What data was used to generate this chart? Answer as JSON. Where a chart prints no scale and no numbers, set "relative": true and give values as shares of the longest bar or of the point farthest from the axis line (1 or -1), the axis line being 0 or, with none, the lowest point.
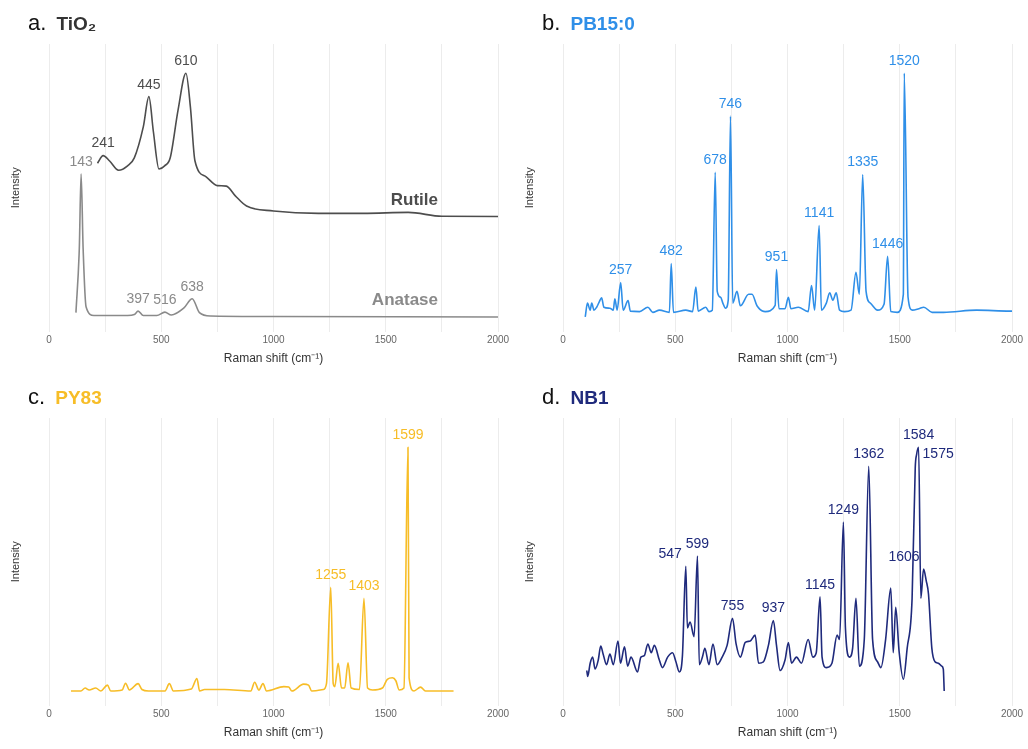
{
  "chart_data": [
    {
      "type": "line",
      "title": "a. TiO₂",
      "xlabel": "Raman shift (cm⁻¹)",
      "ylabel": "Intensity",
      "relative": true,
      "xlim": [
        0,
        2000
      ],
      "xticks": [
        0,
        {
          "value": 250,
          "label": null
        },
        500,
        {
          "value": 750,
          "label": null
        },
        1000,
        {
          "value": 1250,
          "label": null
        },
        1500,
        {
          "value": 1750,
          "label": null
        },
        2000
      ],
      "grid": "x",
      "series": [
        {
          "name": "Rutile",
          "color": "#4d4d4d",
          "x": [
            216,
            241,
            270,
            310,
            350,
            380,
            420,
            445,
            465,
            490,
            515,
            540,
            575,
            610,
            630,
            650,
            700,
            750,
            790,
            830,
            880,
            1000,
            1200,
            1400,
            1600,
            1750,
            2000
          ],
          "values": [
            0.631,
            0.662,
            0.64,
            0.602,
            0.62,
            0.653,
            0.78,
            0.904,
            0.76,
            0.607,
            0.62,
            0.653,
            0.85,
            1,
            0.86,
            0.641,
            0.575,
            0.539,
            0.537,
            0.497,
            0.455,
            0.435,
            0.425,
            0.425,
            0.429,
            0.413,
            0.412
          ]
        },
        {
          "name": "Anatase",
          "color": "#8a8a8a",
          "x": [
            120,
            135,
            143,
            152,
            165,
            200,
            350,
            380,
            397,
            420,
            480,
            516,
            545,
            600,
            638,
            670,
            720,
            1000,
            2000
          ],
          "values": [
            0.018,
            0.281,
            0.587,
            0.281,
            0.042,
            0.006,
            0.006,
            0.01,
            0.024,
            0.006,
            0.006,
            0.02,
            0.008,
            0.036,
            0.075,
            0.018,
            0.004,
            0.002,
            0
          ]
        }
      ],
      "annotations": [
        {
          "text": "610",
          "x": 610,
          "y": 1
        },
        {
          "text": "445",
          "x": 445,
          "y": 0.904
        },
        {
          "text": "241",
          "x": 241,
          "y": 0.662
        },
        {
          "text": "143",
          "x": 143,
          "y": 0.587
        },
        {
          "text": "638",
          "x": 638,
          "y": 0.075
        },
        {
          "text": "397",
          "x": 397,
          "y": 0.024
        },
        {
          "text": "516",
          "x": 516,
          "y": 0.02
        }
      ]
    },
    {
      "type": "line",
      "title": "b. PB15:0",
      "xlabel": "Raman shift (cm⁻¹)",
      "ylabel": "Intensity",
      "relative": true,
      "xlim": [
        0,
        2000
      ],
      "xticks": [
        0,
        {
          "value": 250,
          "label": null
        },
        500,
        {
          "value": 750,
          "label": null
        },
        1000,
        {
          "value": 1250,
          "label": null
        },
        1500,
        {
          "value": 1750,
          "label": null
        },
        2000
      ],
      "grid": "x",
      "series": [
        {
          "color": "#2f8fe8",
          "x": [
            99,
            109,
            121,
            128,
            138,
            150,
            162,
            172,
            182,
            209,
            224,
            231,
            241,
            257,
            268,
            290,
            300,
            341,
            378,
            400,
            430,
            474,
            482,
            492,
            547,
            577,
            592,
            602,
            636,
            650,
            665,
            678,
            687,
            702,
            712,
            724,
            736,
            746,
            756,
            775,
            790,
            827,
            842,
            864,
            901,
            945,
            951,
            962,
            989,
            1004,
            1015,
            1048,
            1092,
            1107,
            1121,
            1141,
            1151,
            1173,
            1188,
            1202,
            1217,
            1232,
            1254,
            1283,
            1305,
            1320,
            1335,
            1350,
            1369,
            1401,
            1430,
            1446,
            1460,
            1489,
            1516,
            1520,
            1537,
            1556,
            1585,
            1607,
            1644,
            1695,
            1842,
            1990,
            2000
          ],
          "values": [
            0,
            0.057,
            0.028,
            0.057,
            0.028,
            0.04,
            0.063,
            0.079,
            0.04,
            0.036,
            0.028,
            0.075,
            0.028,
            0.141,
            0.028,
            0.067,
            0.024,
            0.022,
            0.04,
            0.019,
            0.028,
            0.019,
            0.219,
            0.019,
            0.028,
            0.022,
            0.123,
            0.024,
            0.04,
            0.022,
            0.028,
            0.594,
            0.105,
            0.081,
            0.057,
            0.036,
            0.069,
            0.824,
            0.057,
            0.105,
            0.046,
            0.093,
            0.093,
            0.046,
            0.022,
            0.048,
            0.195,
            0.034,
            0.034,
            0.081,
            0.034,
            0.04,
            0.022,
            0.129,
            0.028,
            0.375,
            0.028,
            0.057,
            0.099,
            0.069,
            0.099,
            0.028,
            0.022,
            0.028,
            0.183,
            0.093,
            0.584,
            0.105,
            0.057,
            0.028,
            0.052,
            0.249,
            0.022,
            0.019,
            0.093,
            1,
            0.081,
            0.028,
            0.034,
            0.04,
            0.019,
            0.019,
            0.028,
            0.024,
            0.024
          ]
        }
      ],
      "annotations": [
        {
          "text": "1520",
          "x": 1520,
          "y": 1
        },
        {
          "text": "746",
          "x": 746,
          "y": 0.824
        },
        {
          "text": "678",
          "x": 678,
          "y": 0.594
        },
        {
          "text": "1335",
          "x": 1335,
          "y": 0.584
        },
        {
          "text": "1141",
          "x": 1141,
          "y": 0.375
        },
        {
          "text": "1446",
          "x": 1446,
          "y": 0.249
        },
        {
          "text": "482",
          "x": 482,
          "y": 0.219
        },
        {
          "text": "951",
          "x": 951,
          "y": 0.195
        },
        {
          "text": "257",
          "x": 257,
          "y": 0.141
        }
      ]
    },
    {
      "type": "line",
      "title": "c. PY83",
      "xlabel": "Raman shift (cm⁻¹)",
      "ylabel": "Intensity",
      "relative": true,
      "xlim": [
        0,
        2000
      ],
      "xticks": [
        0,
        {
          "value": 250,
          "label": null
        },
        500,
        {
          "value": 750,
          "label": null
        },
        1000,
        {
          "value": 1250,
          "label": null
        },
        1500,
        {
          "value": 1750,
          "label": null
        },
        2000
      ],
      "grid": "x",
      "series": [
        {
          "color": "#f7bd27",
          "x": [
            98,
            142,
            161,
            179,
            208,
            231,
            260,
            275,
            326,
            341,
            358,
            397,
            414,
            443,
            517,
            536,
            554,
            634,
            659,
            671,
            693,
            781,
            899,
            916,
            935,
            953,
            969,
            1046,
            1068,
            1082,
            1134,
            1156,
            1170,
            1222,
            1236,
            1255,
            1266,
            1273,
            1288,
            1303,
            1317,
            1332,
            1346,
            1383,
            1403,
            1419,
            1441,
            1485,
            1507,
            1530,
            1545,
            1560,
            1581,
            1599,
            1604,
            1626,
            1655,
            1677,
            1802
          ],
          "values": [
            0,
            0,
            0.012,
            0.004,
            0.012,
            0,
            0.024,
            0,
            0.004,
            0.032,
            0.004,
            0.03,
            0.006,
            0,
            0,
            0.03,
            0,
            0.008,
            0.051,
            0,
            0.006,
            0.006,
            0,
            0.036,
            0.004,
            0.03,
            0,
            0.018,
            0.016,
            0,
            0.028,
            0.024,
            0,
            0.006,
            0.03,
            0.425,
            0.03,
            0.018,
            0.114,
            0.012,
            0.012,
            0.116,
            0.012,
            0.006,
            0.38,
            0.012,
            0.004,
            0.012,
            0.048,
            0.054,
            0.042,
            0.004,
            0.012,
            1,
            0.054,
            0,
            0.016,
            0,
            0
          ]
        }
      ],
      "annotations": [
        {
          "text": "1599",
          "x": 1599,
          "y": 1
        },
        {
          "text": "1255",
          "x": 1255,
          "y": 0.425
        },
        {
          "text": "1403",
          "x": 1403,
          "y": 0.38
        }
      ]
    },
    {
      "type": "line",
      "title": "d. NB1",
      "xlabel": "Raman shift (cm⁻¹)",
      "ylabel": "Intensity",
      "relative": true,
      "xlim": [
        0,
        2000
      ],
      "xticks": [
        0,
        {
          "value": 250,
          "label": null
        },
        500,
        {
          "value": 750,
          "label": null
        },
        1000,
        {
          "value": 1250,
          "label": null
        },
        1500,
        {
          "value": 1750,
          "label": null
        },
        2000
      ],
      "grid": "x",
      "series": [
        {
          "color": "#1f2a7c",
          "x": [
            106,
            110,
            121,
            132,
            143,
            157,
            168,
            179,
            194,
            209,
            224,
            245,
            256,
            274,
            288,
            303,
            332,
            347,
            362,
            378,
            393,
            407,
            429,
            443,
            466,
            488,
            503,
            518,
            532,
            547,
            554,
            566,
            584,
            599,
            607,
            621,
            632,
            650,
            668,
            687,
            709,
            731,
            755,
            771,
            790,
            812,
            834,
            856,
            871,
            893,
            915,
            937,
            951,
            967,
            989,
            1004,
            1018,
            1040,
            1062,
            1092,
            1113,
            1128,
            1145,
            1154,
            1173,
            1198,
            1221,
            1232,
            1249,
            1258,
            1276,
            1290,
            1305,
            1320,
            1342,
            1362,
            1379,
            1401,
            1416,
            1437,
            1460,
            1471,
            1482,
            1497,
            1516,
            1533,
            1555,
            1569,
            1575,
            1584,
            1594,
            1606,
            1618,
            1628,
            1643,
            1657,
            1672,
            1687,
            1694,
            1698
          ],
          "values": [
            0.084,
            0.06,
            0.114,
            0.139,
            0.09,
            0.127,
            0.184,
            0.151,
            0.108,
            0.151,
            0.108,
            0.205,
            0.114,
            0.181,
            0.102,
            0.139,
            0.078,
            0.139,
            0.145,
            0.193,
            0.157,
            0.187,
            0.127,
            0.096,
            0.139,
            0.157,
            0.12,
            0.078,
            0.145,
            0.512,
            0.259,
            0.283,
            0.223,
            0.554,
            0.108,
            0.139,
            0.175,
            0.108,
            0.193,
            0.108,
            0.139,
            0.187,
            0.298,
            0.193,
            0.139,
            0.199,
            0.205,
            0.229,
            0.114,
            0.12,
            0.187,
            0.289,
            0.187,
            0.084,
            0.127,
            0.199,
            0.114,
            0.139,
            0.114,
            0.211,
            0.139,
            0.157,
            0.386,
            0.139,
            0.096,
            0.114,
            0.229,
            0.211,
            0.693,
            0.259,
            0.139,
            0.175,
            0.38,
            0.102,
            0.211,
            0.922,
            0.211,
            0.12,
            0.096,
            0.211,
            0.422,
            0.157,
            0.343,
            0.163,
            0.048,
            0.175,
            0.38,
            0.916,
            0.97,
            1,
            0.38,
            0.5,
            0.452,
            0.398,
            0.175,
            0.12,
            0.114,
            0.102,
            0.09,
            0
          ]
        }
      ],
      "annotations": [
        {
          "text": "1584",
          "x": 1584,
          "y": 1
        },
        {
          "text": "1575",
          "x": 1575,
          "y": 0.97
        },
        {
          "text": "1362",
          "x": 1362,
          "y": 0.922
        },
        {
          "text": "1249",
          "x": 1249,
          "y": 0.693
        },
        {
          "text": "599",
          "x": 599,
          "y": 0.554
        },
        {
          "text": "547",
          "x": 547,
          "y": 0.512
        },
        {
          "text": "1606",
          "x": 1606,
          "y": 0.5
        },
        {
          "text": "1145",
          "x": 1145,
          "y": 0.386
        },
        {
          "text": "755",
          "x": 755,
          "y": 0.298
        },
        {
          "text": "937",
          "x": 937,
          "y": 0.289
        }
      ]
    }
  ]
}
